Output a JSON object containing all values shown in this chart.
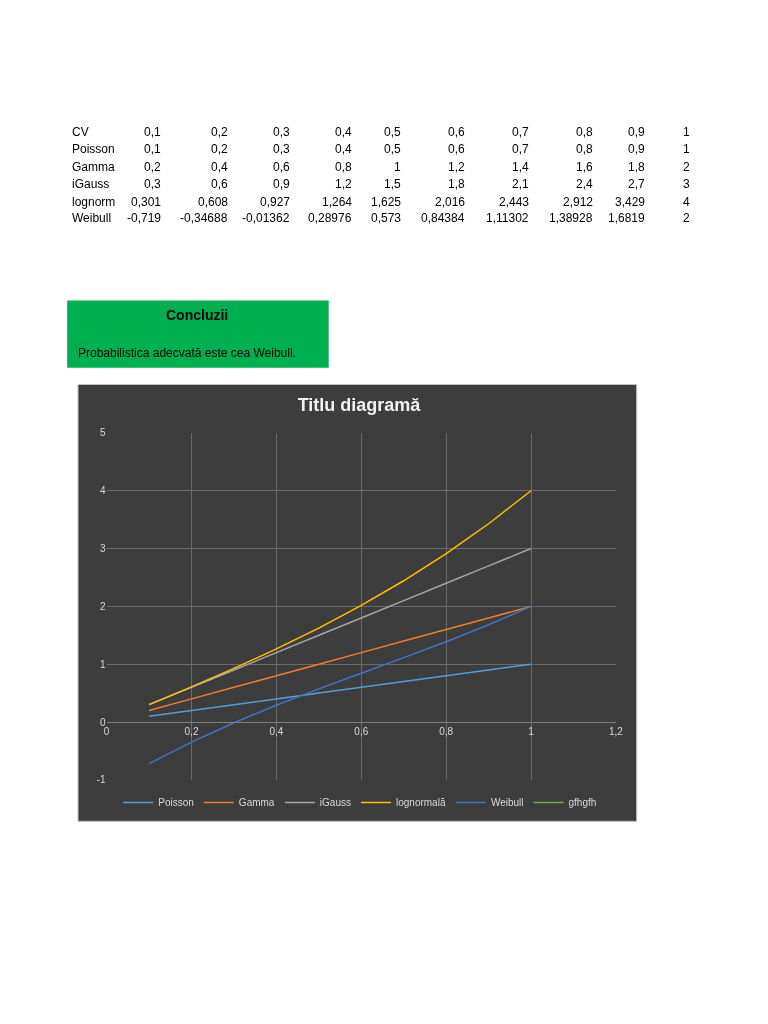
{
  "chart_data": {
    "type": "line",
    "title": "Titlu diagramă",
    "x": [
      0.1,
      0.2,
      0.3,
      0.4,
      0.5,
      0.6,
      0.7,
      0.8,
      0.9,
      1
    ],
    "series": [
      {
        "name": "Poisson",
        "color": "#5b9bd5",
        "values": [
          0.1,
          0.2,
          0.3,
          0.4,
          0.5,
          0.6,
          0.7,
          0.8,
          0.9,
          1
        ]
      },
      {
        "name": "Gamma",
        "color": "#ed7d31",
        "values": [
          0.2,
          0.4,
          0.6,
          0.8,
          1,
          1.2,
          1.4,
          1.6,
          1.8,
          2
        ]
      },
      {
        "name": "iGauss",
        "color": "#a5a5a5",
        "values": [
          0.3,
          0.6,
          0.9,
          1.2,
          1.5,
          1.8,
          2.1,
          2.4,
          2.7,
          3
        ]
      },
      {
        "name": "lognormală",
        "color": "#ffc000",
        "values": [
          0.301,
          0.608,
          0.927,
          1.264,
          1.625,
          2.016,
          2.443,
          2.912,
          3.429,
          4
        ]
      },
      {
        "name": "Weibull",
        "color": "#4472c4",
        "values": [
          -0.719,
          -0.34688,
          -0.01362,
          0.28976,
          0.573,
          0.84384,
          1.11302,
          1.38928,
          1.6819,
          2
        ]
      },
      {
        "name": "gfhgfh",
        "color": "#70ad47",
        "values": [
          null,
          null,
          null,
          null,
          null,
          null,
          null,
          null,
          null,
          null
        ]
      }
    ],
    "xlim": [
      0,
      1.2
    ],
    "xticks": [
      0,
      {
        "value": 0.2,
        "label": "0,2"
      },
      {
        "value": 0.4,
        "label": "0,4"
      },
      {
        "value": 0.6,
        "label": "0,6"
      },
      {
        "value": 0.8,
        "label": "0,8"
      },
      1,
      {
        "value": 1.2,
        "label": "1,2"
      }
    ],
    "ylim": [
      -1,
      5
    ],
    "yticks": [
      -1,
      0,
      1,
      2,
      3,
      4,
      5
    ],
    "grid": true,
    "legend": "bottom",
    "marker": "none",
    "line_style": "solid",
    "annotations": [
      "CV",
      "0,1",
      "0,2",
      "0,3",
      "0,4",
      "0,5",
      "0,6",
      "0,7",
      "0,8",
      "0,9",
      "1",
      "Poisson",
      "0,1",
      "0,2",
      "0,3",
      "0,4",
      "0,5",
      "0,6",
      "0,7",
      "0,8",
      "0,9",
      "1",
      "Gamma",
      "0,2",
      "0,4",
      "0,6",
      "0,8",
      "1",
      "1,2",
      "1,4",
      "1,6",
      "1,8",
      "2",
      "iGauss",
      "0,3",
      "0,6",
      "0,9",
      "1,2",
      "1,5",
      "1,8",
      "2,1",
      "2,4",
      "2,7",
      "3",
      "lognorm",
      "0,301",
      "0,608",
      "0,927",
      "1,264",
      "1,625",
      "2,016",
      "2,443",
      "2,912",
      "3,429",
      "4",
      "Weibull",
      "-0,719",
      "-0,34688",
      "-0,01362",
      "0,28976",
      "0,573",
      "0,84384",
      "1,11302",
      "1,38928",
      "1,6819",
      "2",
      "Concluzii",
      "Probabilistica adecvată este cea Weibull."
    ]
  }
}
